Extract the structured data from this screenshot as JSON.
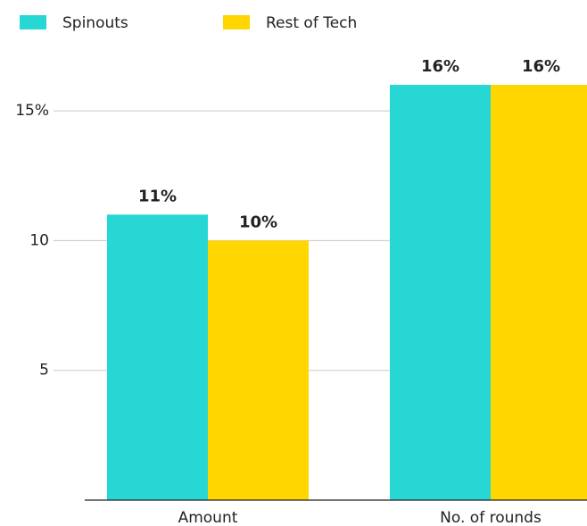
{
  "chart_data": {
    "type": "bar",
    "categories": [
      "Amount",
      "No. of rounds"
    ],
    "series": [
      {
        "name": "Spinouts",
        "color": "#26d7d3",
        "values": [
          11,
          16
        ],
        "value_labels": [
          "11%",
          "16%"
        ]
      },
      {
        "name": "Rest of Tech",
        "color": "#ffd600",
        "values": [
          10,
          16
        ],
        "value_labels": [
          "10%",
          "16%"
        ]
      }
    ],
    "ylim": [
      0,
      16
    ],
    "yticks": [
      5,
      10,
      {
        "value": 15,
        "label": "15%"
      }
    ],
    "grid": true
  }
}
